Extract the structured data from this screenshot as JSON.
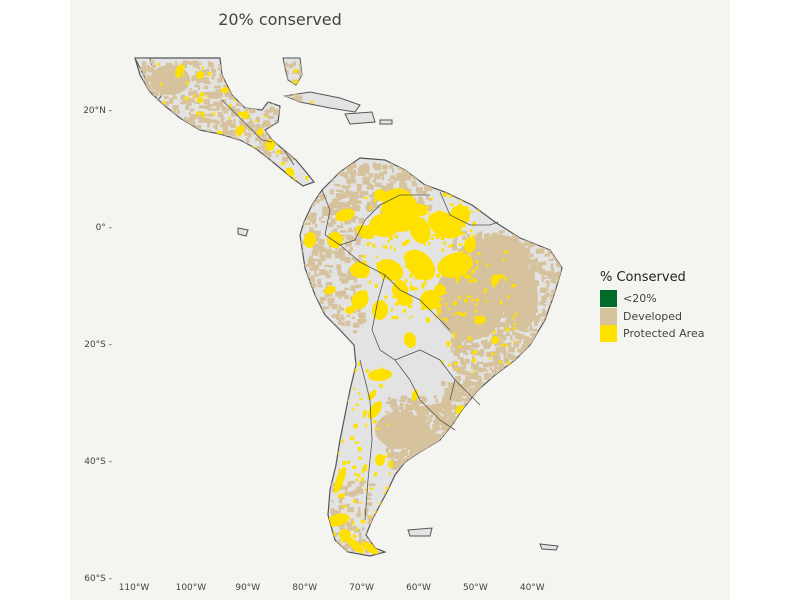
{
  "title": "20% conserved",
  "y_ticks": [
    {
      "label": "20°N",
      "lat": 20
    },
    {
      "label": "0°",
      "lat": 0
    },
    {
      "label": "20°S",
      "lat": -20
    },
    {
      "label": "40°S",
      "lat": -40
    },
    {
      "label": "60°S",
      "lat": -60
    }
  ],
  "x_ticks": [
    {
      "label": "110°W",
      "lon": -110
    },
    {
      "label": "100°W",
      "lon": -100
    },
    {
      "label": "90°W",
      "lon": -90
    },
    {
      "label": "80°W",
      "lon": -80
    },
    {
      "label": "70°W",
      "lon": -70
    },
    {
      "label": "60°W",
      "lon": -60
    },
    {
      "label": "50°W",
      "lon": -50
    },
    {
      "label": "40°W",
      "lon": -40
    }
  ],
  "legend": {
    "title": "% Conserved",
    "items": [
      {
        "label": "<20%",
        "color": "#006b2b"
      },
      {
        "label": "Developed",
        "color": "#d6c29c"
      },
      {
        "label": "Protected Area",
        "color": "#ffe100"
      }
    ]
  },
  "colors": {
    "land": "#e3e3e3",
    "border": "#555555",
    "developed": "#d6c29c",
    "protected": "#ffe100",
    "panel": "#f4f4f0"
  }
}
